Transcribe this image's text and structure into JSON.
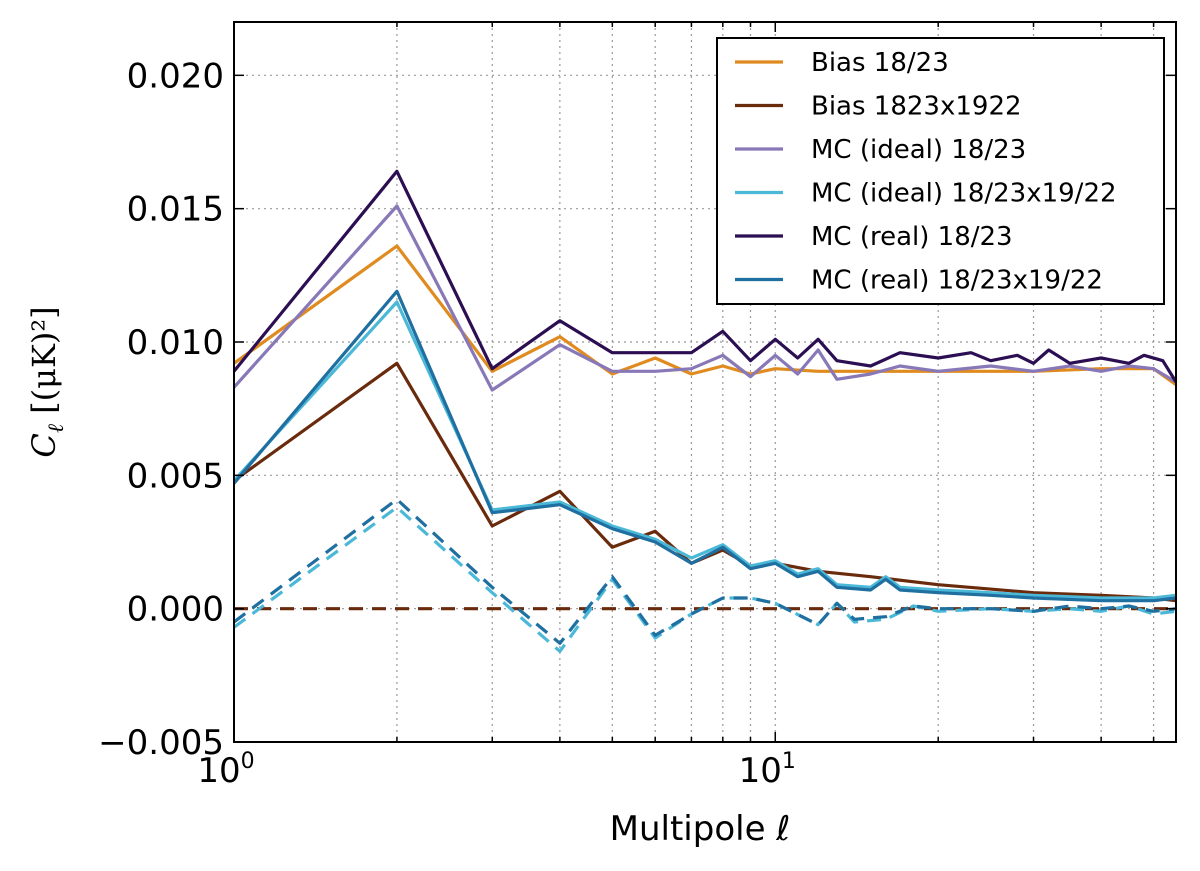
{
  "chart_data": {
    "type": "line",
    "x_scale": "log",
    "xlim": [
      1,
      55
    ],
    "ylim": [
      -0.005,
      0.022
    ],
    "x_tick_labels": [
      {
        "value": 1,
        "base": "10",
        "exp": "0"
      },
      {
        "value": 10,
        "base": "10",
        "exp": "1"
      }
    ],
    "y_ticks": [
      -0.005,
      0.0,
      0.005,
      0.01,
      0.015,
      0.02
    ],
    "y_tick_labels": [
      "−0.005",
      "0.000",
      "0.005",
      "0.010",
      "0.015",
      "0.020"
    ],
    "xlabel": "Multipole ℓ",
    "ylabel": {
      "symbol": "C",
      "sub": "ℓ",
      "unit": "[(μK)²]"
    },
    "grid": true,
    "legend_position": "top-right",
    "series": [
      {
        "name": "Bias 18/23",
        "color": "#e08b1f",
        "style": "solid",
        "points": [
          [
            1,
            0.0092
          ],
          [
            2,
            0.0136
          ],
          [
            3,
            0.0089
          ],
          [
            4,
            0.0102
          ],
          [
            5,
            0.0088
          ],
          [
            6,
            0.0094
          ],
          [
            7,
            0.0088
          ],
          [
            8,
            0.0091
          ],
          [
            9,
            0.0088
          ],
          [
            10,
            0.009
          ],
          [
            12,
            0.0089
          ],
          [
            15,
            0.0089
          ],
          [
            20,
            0.0089
          ],
          [
            25,
            0.0089
          ],
          [
            30,
            0.0089
          ],
          [
            40,
            0.009
          ],
          [
            50,
            0.009
          ],
          [
            55,
            0.0084
          ]
        ]
      },
      {
        "name": "Bias 1823x1922",
        "color": "#6a2a0c",
        "style": "solid",
        "points": [
          [
            1,
            0.0048
          ],
          [
            2,
            0.0092
          ],
          [
            3,
            0.0031
          ],
          [
            4,
            0.0044
          ],
          [
            5,
            0.0023
          ],
          [
            6,
            0.0029
          ],
          [
            7,
            0.0017
          ],
          [
            8,
            0.0022
          ],
          [
            9,
            0.0016
          ],
          [
            10,
            0.0017
          ],
          [
            12,
            0.0014
          ],
          [
            15,
            0.0012
          ],
          [
            20,
            0.0009
          ],
          [
            30,
            0.0006
          ],
          [
            40,
            0.0005
          ],
          [
            50,
            0.0004
          ],
          [
            55,
            0.0003
          ]
        ]
      },
      {
        "name": "MC (ideal) 18/23",
        "color": "#8878b8",
        "style": "solid",
        "points": [
          [
            1,
            0.0083
          ],
          [
            2,
            0.0151
          ],
          [
            3,
            0.0082
          ],
          [
            4,
            0.0099
          ],
          [
            5,
            0.0089
          ],
          [
            6,
            0.0089
          ],
          [
            7,
            0.009
          ],
          [
            8,
            0.0095
          ],
          [
            9,
            0.0087
          ],
          [
            10,
            0.0095
          ],
          [
            11,
            0.0088
          ],
          [
            12,
            0.0097
          ],
          [
            13,
            0.0086
          ],
          [
            15,
            0.0088
          ],
          [
            17,
            0.0091
          ],
          [
            20,
            0.0089
          ],
          [
            25,
            0.0091
          ],
          [
            30,
            0.0089
          ],
          [
            35,
            0.0091
          ],
          [
            40,
            0.0089
          ],
          [
            45,
            0.0091
          ],
          [
            50,
            0.009
          ],
          [
            55,
            0.0085
          ]
        ]
      },
      {
        "name": "MC (ideal) 18/23x19/22",
        "color": "#4bb8d8",
        "style": "solid",
        "points": [
          [
            1,
            0.0048
          ],
          [
            2,
            0.0115
          ],
          [
            3,
            0.0037
          ],
          [
            4,
            0.004
          ],
          [
            5,
            0.0031
          ],
          [
            6,
            0.0026
          ],
          [
            7,
            0.0019
          ],
          [
            8,
            0.0024
          ],
          [
            9,
            0.0016
          ],
          [
            10,
            0.0018
          ],
          [
            11,
            0.0013
          ],
          [
            12,
            0.0015
          ],
          [
            13,
            0.0009
          ],
          [
            15,
            0.0008
          ],
          [
            16,
            0.0012
          ],
          [
            17,
            0.0008
          ],
          [
            20,
            0.0007
          ],
          [
            25,
            0.0006
          ],
          [
            30,
            0.0005
          ],
          [
            40,
            0.0004
          ],
          [
            50,
            0.0004
          ],
          [
            55,
            0.0005
          ]
        ]
      },
      {
        "name": "MC (real) 18/23",
        "color": "#2c0f52",
        "style": "solid",
        "points": [
          [
            1,
            0.0089
          ],
          [
            2,
            0.0164
          ],
          [
            3,
            0.009
          ],
          [
            4,
            0.0108
          ],
          [
            5,
            0.0096
          ],
          [
            6,
            0.0096
          ],
          [
            7,
            0.0096
          ],
          [
            8,
            0.0104
          ],
          [
            9,
            0.0093
          ],
          [
            10,
            0.0101
          ],
          [
            11,
            0.0094
          ],
          [
            12,
            0.0101
          ],
          [
            13,
            0.0093
          ],
          [
            15,
            0.0091
          ],
          [
            17,
            0.0096
          ],
          [
            20,
            0.0094
          ],
          [
            23,
            0.0096
          ],
          [
            25,
            0.0093
          ],
          [
            28,
            0.0095
          ],
          [
            30,
            0.0092
          ],
          [
            32,
            0.0097
          ],
          [
            35,
            0.0092
          ],
          [
            40,
            0.0094
          ],
          [
            45,
            0.0092
          ],
          [
            48,
            0.0095
          ],
          [
            52,
            0.0093
          ],
          [
            55,
            0.0085
          ]
        ]
      },
      {
        "name": "MC (real) 18/23x19/22",
        "color": "#1f6fa0",
        "style": "solid",
        "points": [
          [
            1,
            0.0047
          ],
          [
            2,
            0.0119
          ],
          [
            3,
            0.0036
          ],
          [
            4,
            0.0039
          ],
          [
            5,
            0.003
          ],
          [
            6,
            0.0025
          ],
          [
            7,
            0.0017
          ],
          [
            8,
            0.0023
          ],
          [
            9,
            0.0015
          ],
          [
            10,
            0.0017
          ],
          [
            11,
            0.0012
          ],
          [
            12,
            0.0014
          ],
          [
            13,
            0.0008
          ],
          [
            15,
            0.0007
          ],
          [
            16,
            0.0011
          ],
          [
            17,
            0.0007
          ],
          [
            20,
            0.0006
          ],
          [
            25,
            0.0005
          ],
          [
            30,
            0.0004
          ],
          [
            40,
            0.0003
          ],
          [
            50,
            0.0003
          ],
          [
            55,
            0.0004
          ]
        ]
      },
      {
        "color": "#6a2a0c",
        "style": "dashed",
        "points": [
          [
            1,
            0.0
          ],
          [
            55,
            0.0
          ]
        ]
      },
      {
        "color": "#4bb8d8",
        "style": "dashed",
        "points": [
          [
            1,
            -0.0007
          ],
          [
            2,
            0.0038
          ],
          [
            3,
            0.0006
          ],
          [
            4,
            -0.0016
          ],
          [
            5,
            0.0011
          ],
          [
            6,
            -0.0011
          ],
          [
            7,
            -0.0002
          ],
          [
            8,
            0.0004
          ],
          [
            9,
            0.0004
          ],
          [
            10,
            0.0002
          ],
          [
            12,
            -0.0006
          ],
          [
            13,
            0.0002
          ],
          [
            14,
            -0.0005
          ],
          [
            16,
            -0.0004
          ],
          [
            18,
            0.0001
          ],
          [
            20,
            -0.0001
          ],
          [
            25,
            0.0
          ],
          [
            30,
            -0.0001
          ],
          [
            35,
            0.0
          ],
          [
            40,
            -0.0001
          ],
          [
            45,
            0.0001
          ],
          [
            50,
            -0.0002
          ],
          [
            55,
            -0.0001
          ]
        ]
      },
      {
        "color": "#1f6fa0",
        "style": "dashed",
        "points": [
          [
            1,
            -0.0005
          ],
          [
            2,
            0.0041
          ],
          [
            3,
            0.0008
          ],
          [
            4,
            -0.0013
          ],
          [
            5,
            0.0012
          ],
          [
            6,
            -0.001
          ],
          [
            7,
            -0.0002
          ],
          [
            8,
            0.0004
          ],
          [
            9,
            0.0004
          ],
          [
            10,
            0.0002
          ],
          [
            12,
            -0.0006
          ],
          [
            13,
            0.0002
          ],
          [
            14,
            -0.0004
          ],
          [
            16,
            -0.0003
          ],
          [
            18,
            0.0001
          ],
          [
            20,
            0.0
          ],
          [
            25,
            0.0
          ],
          [
            30,
            -0.0001
          ],
          [
            35,
            0.0001
          ],
          [
            40,
            0.0
          ],
          [
            45,
            0.0001
          ],
          [
            50,
            -0.0001
          ],
          [
            55,
            0.0
          ]
        ]
      }
    ]
  }
}
